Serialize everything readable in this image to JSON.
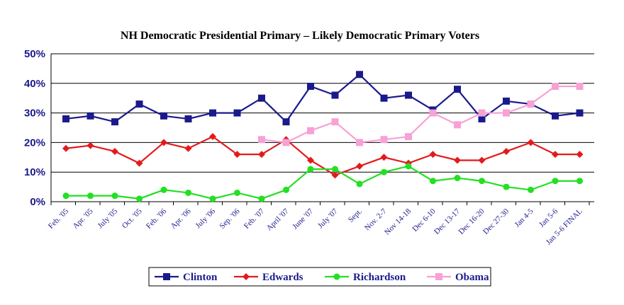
{
  "chart_data": {
    "type": "line",
    "title": "NH Democratic Presidential Primary – Likely Democratic Primary Voters",
    "xlabel": "",
    "ylabel": "",
    "ylim": [
      0,
      50
    ],
    "yticks": [
      "0%",
      "10%",
      "20%",
      "30%",
      "40%",
      "50%"
    ],
    "grid": true,
    "legend_position": "bottom",
    "categories": [
      "Feb. '05",
      "Apr. '05",
      "July '05",
      "Oct. '05",
      "Feb. '06",
      "Apr. '06",
      "July '06",
      "Sep. '06",
      "Feb. '07",
      "April '07",
      "June '07",
      "July '07",
      "Sept.",
      "Nov. 2-7",
      "Nov 14-18",
      "Dec 6-10",
      "Dec 13-17",
      "Dec 16-20",
      "Dec 27-30",
      "Jan 4-5",
      "Jan 5-6",
      "Jan 5-6 FINAL"
    ],
    "x_positions": [
      0,
      1,
      2,
      3,
      4,
      5,
      6,
      7,
      8,
      9,
      10,
      11,
      12,
      13,
      14,
      15,
      16,
      17,
      18,
      19,
      20,
      21
    ],
    "series": [
      {
        "name": "Clinton",
        "color": "#1a1a8c",
        "marker": "square",
        "x": [
          0,
          1,
          2,
          3,
          4,
          5,
          6,
          7,
          8,
          9,
          10,
          11,
          12,
          13,
          14,
          15,
          16,
          17,
          18,
          19,
          20,
          21
        ],
        "values": [
          28,
          29,
          27,
          33,
          29,
          28,
          30,
          30,
          35,
          27,
          39,
          36,
          43,
          35,
          36,
          31,
          38,
          28,
          34,
          33,
          29,
          30
        ]
      },
      {
        "name": "Edwards",
        "color": "#e31a1c",
        "marker": "diamond",
        "x": [
          0,
          1,
          2,
          3,
          4,
          5,
          6,
          7,
          8,
          9,
          10,
          11,
          12,
          13,
          14,
          15,
          16,
          17,
          18,
          19,
          20,
          21
        ],
        "values": [
          18,
          19,
          17,
          13,
          20,
          18,
          22,
          16,
          16,
          21,
          14,
          9,
          12,
          15,
          13,
          16,
          14,
          14,
          17,
          20,
          16,
          16
        ]
      },
      {
        "name": "Richardson",
        "color": "#22e022",
        "marker": "circle",
        "x": [
          0,
          1,
          2,
          3,
          4,
          5,
          6,
          7,
          8,
          9,
          10,
          11,
          12,
          13,
          14,
          15,
          16,
          17,
          18,
          19,
          20,
          21
        ],
        "values": [
          2,
          2,
          2,
          1,
          4,
          3,
          1,
          3,
          1,
          4,
          11,
          11,
          6,
          10,
          12,
          7,
          8,
          7,
          5,
          4,
          7,
          7
        ]
      },
      {
        "name": "Obama",
        "color": "#f7a1d6",
        "marker": "square",
        "x": [
          8,
          9,
          10,
          11,
          12,
          13,
          14,
          15,
          16,
          17,
          18,
          19,
          20,
          21
        ],
        "values": [
          21,
          20,
          24,
          27,
          20,
          21,
          22,
          30,
          26,
          30,
          30,
          33,
          39,
          39
        ]
      }
    ]
  }
}
